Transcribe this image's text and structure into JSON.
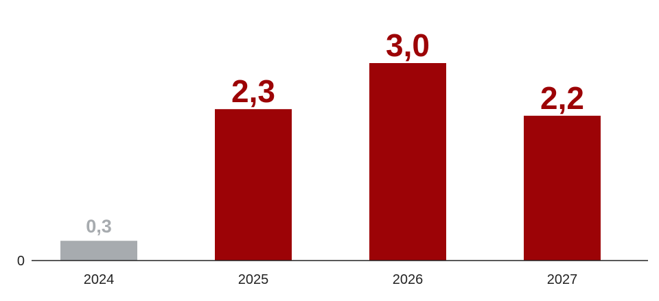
{
  "chart_data": {
    "type": "bar",
    "categories": [
      "2024",
      "2025",
      "2026",
      "2027"
    ],
    "values": [
      0.3,
      2.3,
      3.0,
      2.2
    ],
    "value_labels": [
      "0,3",
      "2,3",
      "3,0",
      "2,2"
    ],
    "bar_colors": [
      "#a7abaf",
      "#9c0306",
      "#9c0306",
      "#9c0306"
    ],
    "label_colors": [
      "#a7abaf",
      "#9c0306",
      "#9c0306",
      "#9c0306"
    ],
    "title": "",
    "xlabel": "",
    "ylabel": "",
    "ylim": [
      0,
      3.0
    ],
    "y_ticks": [
      "0"
    ],
    "grid": false,
    "axis_color": "#222222"
  }
}
